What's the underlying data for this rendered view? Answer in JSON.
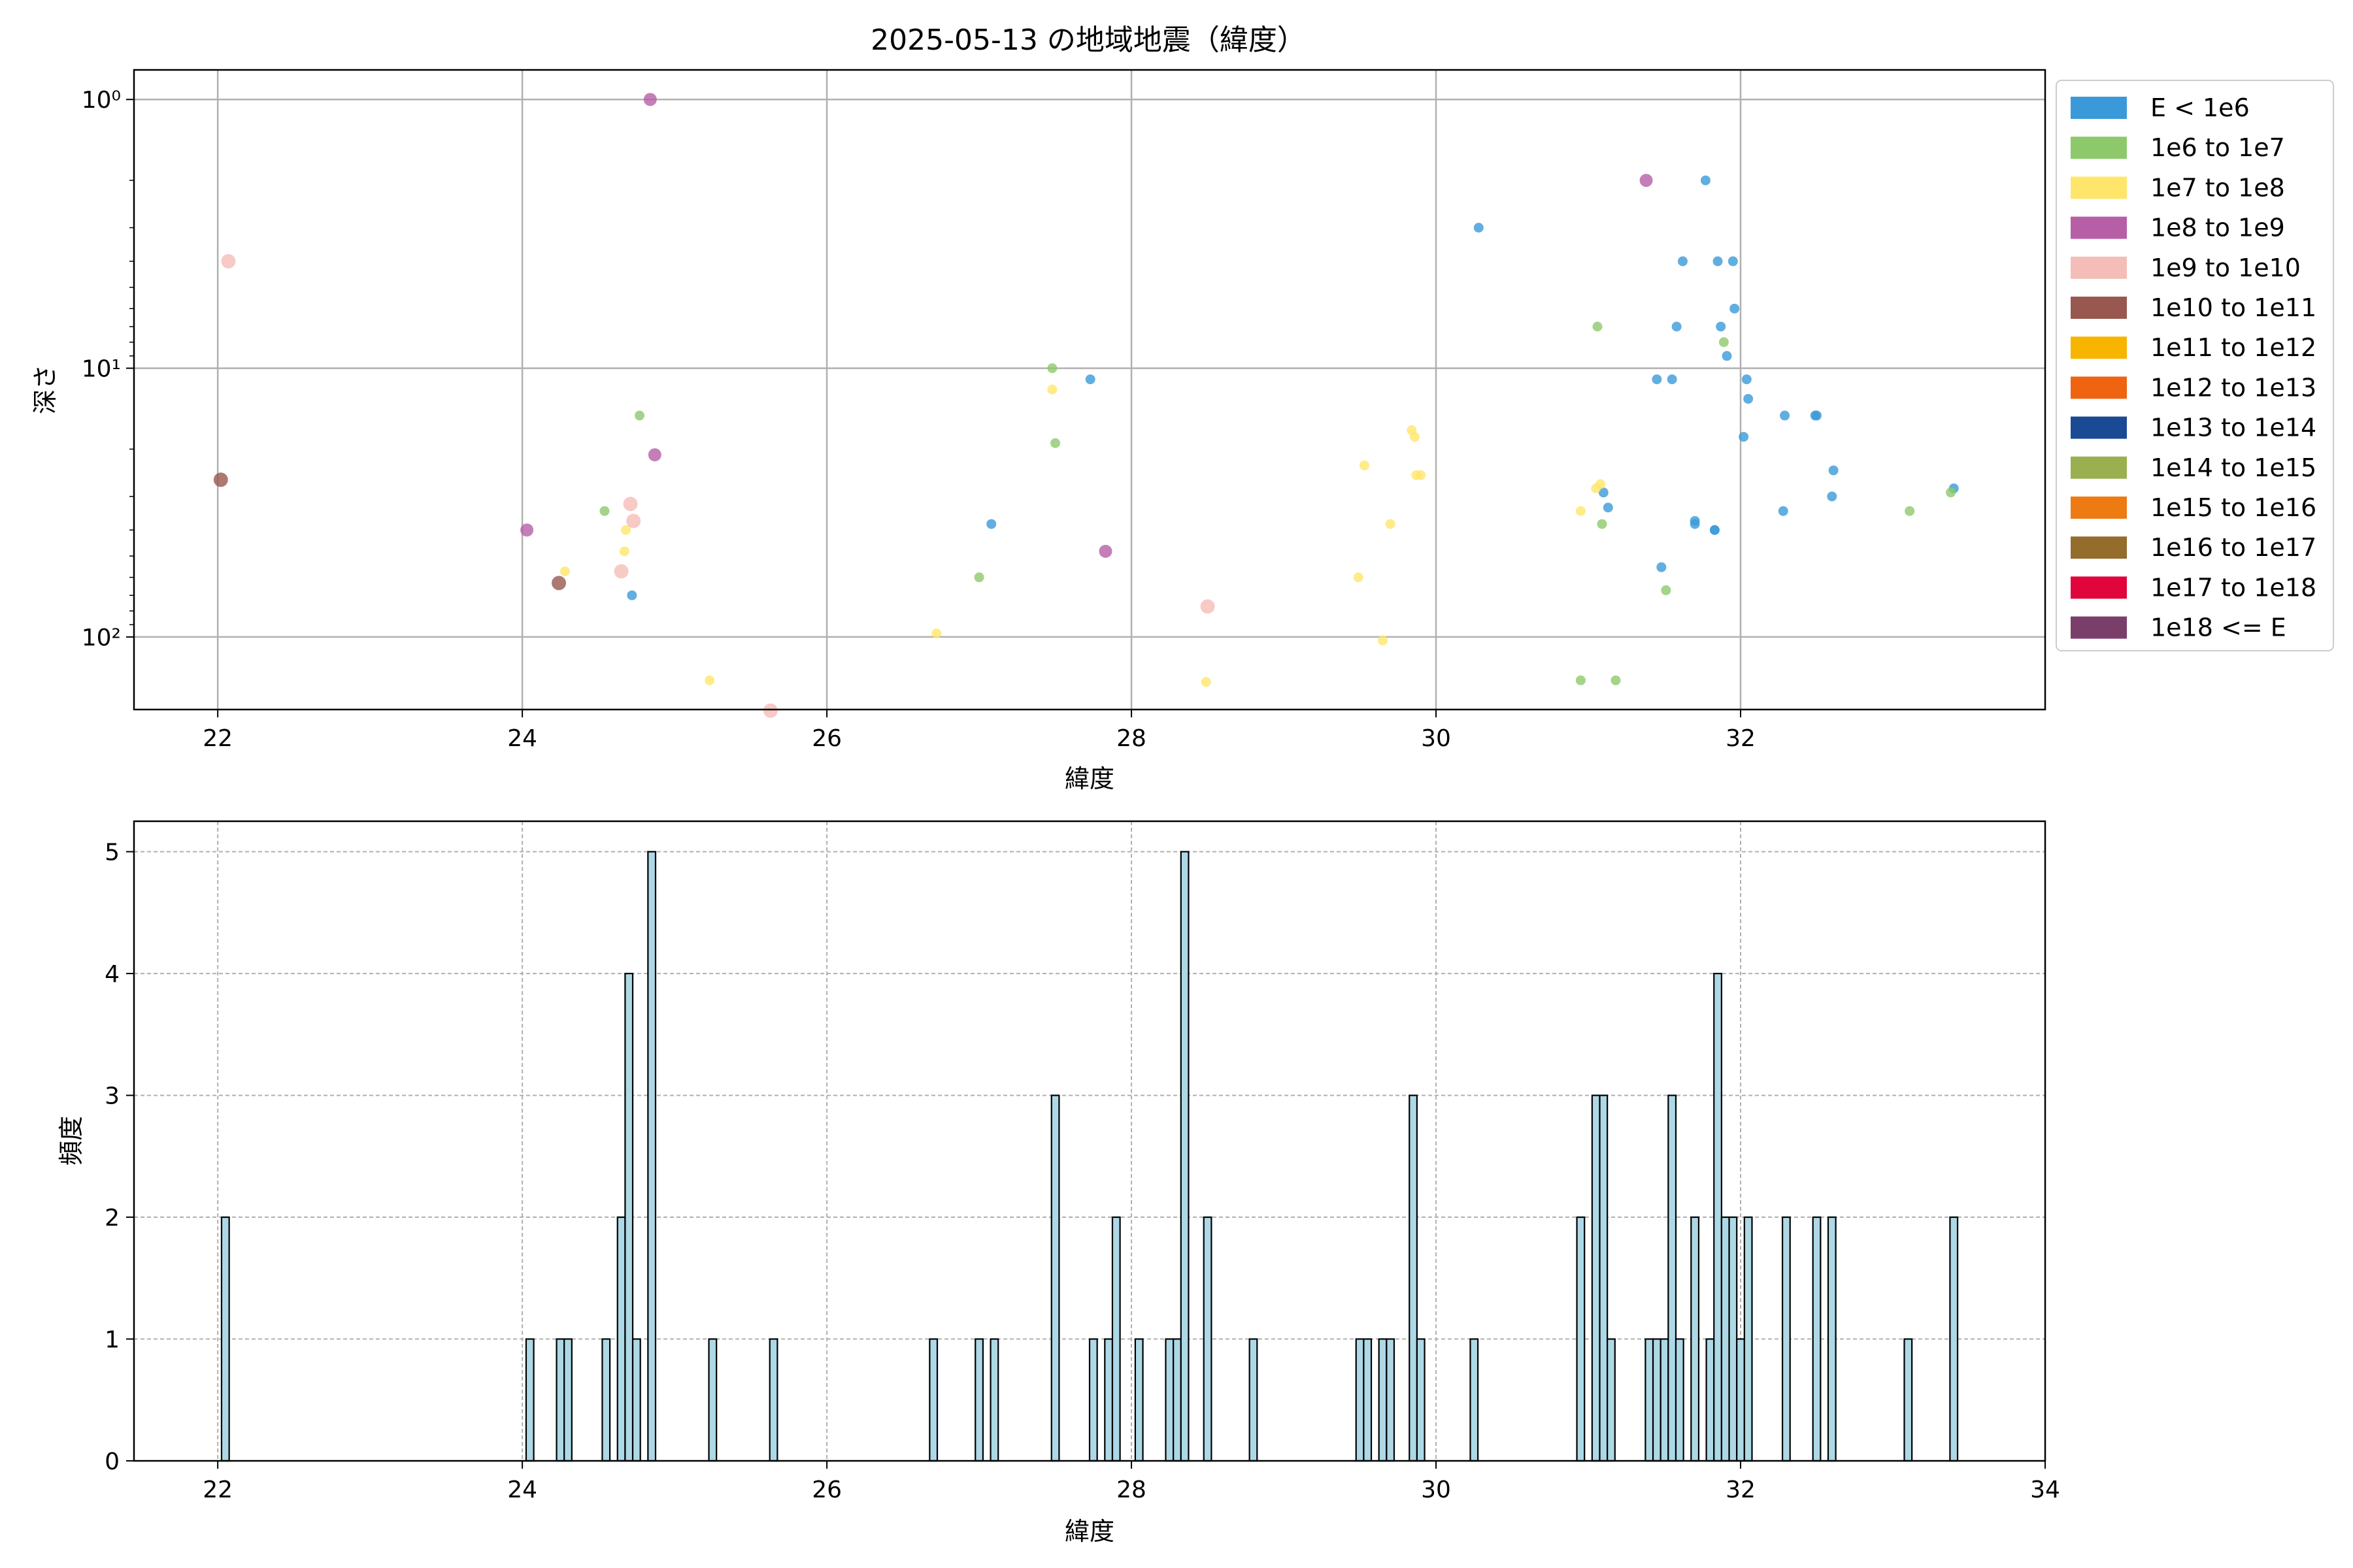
{
  "chart_data": [
    {
      "type": "scatter",
      "title": "2025-05-13 の地域地震（緯度）",
      "xlabel": "緯度",
      "ylabel": "深さ",
      "x_ticks": [
        "22",
        "24",
        "26",
        "28",
        "30",
        "32"
      ],
      "x_tick_values": [
        22,
        24,
        26,
        28,
        30,
        32
      ],
      "xlim": [
        21.45,
        34.0
      ],
      "y_scale": "log",
      "y_inverted": true,
      "y_ticks": [
        "10⁰",
        "10¹",
        "10²"
      ],
      "y_tick_values": [
        1,
        10,
        100
      ],
      "ylim": [
        1.05,
        0.78
      ],
      "grid": true,
      "legend_position": "outside-right",
      "legend": [
        {
          "label": "E < 1e6",
          "color": "#3a9ad9"
        },
        {
          "label": "1e6 to 1e7",
          "color": "#8dc96b"
        },
        {
          "label": "1e7 to 1e8",
          "color": "#ffe66a"
        },
        {
          "label": "1e8 to 1e9",
          "color": "#b65fa6"
        },
        {
          "label": "1e9 to 1e10",
          "color": "#f5bdb8"
        },
        {
          "label": "1e10 to 1e11",
          "color": "#985850"
        },
        {
          "label": "1e11 to 1e12",
          "color": "#f7b500"
        },
        {
          "label": "1e12 to 1e13",
          "color": "#ee6410"
        },
        {
          "label": "1e13 to 1e14",
          "color": "#1b4a94"
        },
        {
          "label": "1e14 to 1e15",
          "color": "#9ab050"
        },
        {
          "label": "1e15 to 1e16",
          "color": "#ee7a12"
        },
        {
          "label": "1e16 to 1e17",
          "color": "#946c2c"
        },
        {
          "label": "1e17 to 1e18",
          "color": "#e0063c"
        },
        {
          "label": "1e18 <= E",
          "color": "#7a3e6a"
        }
      ],
      "points": [
        {
          "x": 24.72,
          "y": 70,
          "c": 0
        },
        {
          "x": 27.08,
          "y": 38,
          "c": 0
        },
        {
          "x": 27.73,
          "y": 11,
          "c": 0
        },
        {
          "x": 30.28,
          "y": 3,
          "c": 0
        },
        {
          "x": 31.1,
          "y": 29,
          "c": 0
        },
        {
          "x": 31.13,
          "y": 33,
          "c": 0
        },
        {
          "x": 31.45,
          "y": 11,
          "c": 0
        },
        {
          "x": 31.48,
          "y": 55,
          "c": 0
        },
        {
          "x": 31.55,
          "y": 11,
          "c": 0
        },
        {
          "x": 31.58,
          "y": 7,
          "c": 0
        },
        {
          "x": 31.62,
          "y": 4,
          "c": 0
        },
        {
          "x": 31.7,
          "y": 37,
          "c": 0
        },
        {
          "x": 31.7,
          "y": 38,
          "c": 0
        },
        {
          "x": 31.77,
          "y": 2,
          "c": 0
        },
        {
          "x": 31.83,
          "y": 40,
          "c": 0
        },
        {
          "x": 31.83,
          "y": 40,
          "c": 0
        },
        {
          "x": 31.85,
          "y": 4,
          "c": 0
        },
        {
          "x": 31.87,
          "y": 7,
          "c": 0
        },
        {
          "x": 31.91,
          "y": 9,
          "c": 0
        },
        {
          "x": 31.95,
          "y": 4,
          "c": 0
        },
        {
          "x": 31.96,
          "y": 6,
          "c": 0
        },
        {
          "x": 32.02,
          "y": 18,
          "c": 0
        },
        {
          "x": 32.04,
          "y": 11,
          "c": 0
        },
        {
          "x": 32.05,
          "y": 13,
          "c": 0
        },
        {
          "x": 32.28,
          "y": 34,
          "c": 0
        },
        {
          "x": 32.29,
          "y": 15,
          "c": 0
        },
        {
          "x": 32.49,
          "y": 15,
          "c": 0
        },
        {
          "x": 32.5,
          "y": 15,
          "c": 0
        },
        {
          "x": 32.6,
          "y": 30,
          "c": 0
        },
        {
          "x": 32.61,
          "y": 24,
          "c": 0
        },
        {
          "x": 33.4,
          "y": 28,
          "c": 0
        },
        {
          "x": 24.54,
          "y": 34,
          "c": 1
        },
        {
          "x": 24.77,
          "y": 15,
          "c": 1
        },
        {
          "x": 27.0,
          "y": 60,
          "c": 1
        },
        {
          "x": 27.48,
          "y": 10,
          "c": 1
        },
        {
          "x": 27.5,
          "y": 19,
          "c": 1
        },
        {
          "x": 30.95,
          "y": 145,
          "c": 1
        },
        {
          "x": 31.06,
          "y": 7,
          "c": 1
        },
        {
          "x": 31.09,
          "y": 38,
          "c": 1
        },
        {
          "x": 31.18,
          "y": 145,
          "c": 1
        },
        {
          "x": 31.51,
          "y": 67,
          "c": 1
        },
        {
          "x": 31.89,
          "y": 8,
          "c": 1
        },
        {
          "x": 33.11,
          "y": 34,
          "c": 1
        },
        {
          "x": 33.38,
          "y": 29,
          "c": 1
        },
        {
          "x": 24.28,
          "y": 57,
          "c": 2
        },
        {
          "x": 24.67,
          "y": 48,
          "c": 2
        },
        {
          "x": 24.68,
          "y": 40,
          "c": 2
        },
        {
          "x": 25.23,
          "y": 145,
          "c": 2
        },
        {
          "x": 26.72,
          "y": 97,
          "c": 2
        },
        {
          "x": 27.48,
          "y": 12,
          "c": 2
        },
        {
          "x": 28.49,
          "y": 147,
          "c": 2
        },
        {
          "x": 29.49,
          "y": 60,
          "c": 2
        },
        {
          "x": 29.53,
          "y": 23,
          "c": 2
        },
        {
          "x": 29.65,
          "y": 103,
          "c": 2
        },
        {
          "x": 29.7,
          "y": 38,
          "c": 2
        },
        {
          "x": 29.84,
          "y": 17,
          "c": 2
        },
        {
          "x": 29.86,
          "y": 18,
          "c": 2
        },
        {
          "x": 29.87,
          "y": 25,
          "c": 2
        },
        {
          "x": 29.9,
          "y": 25,
          "c": 2
        },
        {
          "x": 30.95,
          "y": 34,
          "c": 2
        },
        {
          "x": 31.05,
          "y": 28,
          "c": 2
        },
        {
          "x": 31.08,
          "y": 27,
          "c": 2
        },
        {
          "x": 24.03,
          "y": 40,
          "c": 3
        },
        {
          "x": 24.84,
          "y": 1,
          "c": 3
        },
        {
          "x": 24.87,
          "y": 21,
          "c": 3
        },
        {
          "x": 27.83,
          "y": 48,
          "c": 3
        },
        {
          "x": 31.38,
          "y": 2,
          "c": 3
        },
        {
          "x": 22.07,
          "y": 4,
          "c": 4
        },
        {
          "x": 24.65,
          "y": 57,
          "c": 4
        },
        {
          "x": 24.71,
          "y": 32,
          "c": 4
        },
        {
          "x": 24.73,
          "y": 37,
          "c": 4
        },
        {
          "x": 25.63,
          "y": 188,
          "c": 4
        },
        {
          "x": 28.5,
          "y": 77,
          "c": 4
        },
        {
          "x": 22.02,
          "y": 26,
          "c": 5
        },
        {
          "x": 24.24,
          "y": 63,
          "c": 5
        }
      ]
    },
    {
      "type": "bar",
      "xlabel": "緯度",
      "ylabel": "頻度",
      "x_ticks": [
        "22",
        "24",
        "26",
        "28",
        "30",
        "32",
        "34"
      ],
      "x_tick_values": [
        22,
        24,
        26,
        28,
        30,
        32,
        34
      ],
      "y_ticks": [
        "0",
        "1",
        "2",
        "3",
        "4",
        "5"
      ],
      "y_tick_values": [
        0,
        1,
        2,
        3,
        4,
        5
      ],
      "xlim": [
        21.45,
        34.0
      ],
      "ylim": [
        0,
        5.25
      ],
      "bin_width": 0.05,
      "grid": "dashed",
      "bar_color": "#add8e6",
      "bins": [
        [
          22.05,
          2
        ],
        [
          24.05,
          1
        ],
        [
          24.25,
          1
        ],
        [
          24.3,
          1
        ],
        [
          24.55,
          1
        ],
        [
          24.65,
          2
        ],
        [
          24.7,
          4
        ],
        [
          24.75,
          1
        ],
        [
          24.85,
          5
        ],
        [
          25.25,
          1
        ],
        [
          25.65,
          1
        ],
        [
          26.7,
          1
        ],
        [
          27.0,
          1
        ],
        [
          27.1,
          1
        ],
        [
          27.5,
          3
        ],
        [
          27.75,
          1
        ],
        [
          27.85,
          1
        ],
        [
          27.9,
          2
        ],
        [
          28.05,
          1
        ],
        [
          28.25,
          1
        ],
        [
          28.3,
          1
        ],
        [
          28.35,
          5
        ],
        [
          28.5,
          2
        ],
        [
          28.8,
          1
        ],
        [
          29.5,
          1
        ],
        [
          29.55,
          1
        ],
        [
          29.65,
          1
        ],
        [
          29.7,
          1
        ],
        [
          29.85,
          3
        ],
        [
          29.9,
          1
        ],
        [
          30.25,
          1
        ],
        [
          30.95,
          2
        ],
        [
          31.05,
          3
        ],
        [
          31.1,
          3
        ],
        [
          31.15,
          1
        ],
        [
          31.4,
          1
        ],
        [
          31.45,
          1
        ],
        [
          31.5,
          1
        ],
        [
          31.55,
          3
        ],
        [
          31.6,
          1
        ],
        [
          31.7,
          2
        ],
        [
          31.8,
          1
        ],
        [
          31.85,
          4
        ],
        [
          31.9,
          2
        ],
        [
          31.95,
          2
        ],
        [
          32.0,
          1
        ],
        [
          32.05,
          2
        ],
        [
          32.3,
          2
        ],
        [
          32.5,
          2
        ],
        [
          32.6,
          2
        ],
        [
          33.1,
          1
        ],
        [
          33.4,
          2
        ]
      ]
    }
  ]
}
